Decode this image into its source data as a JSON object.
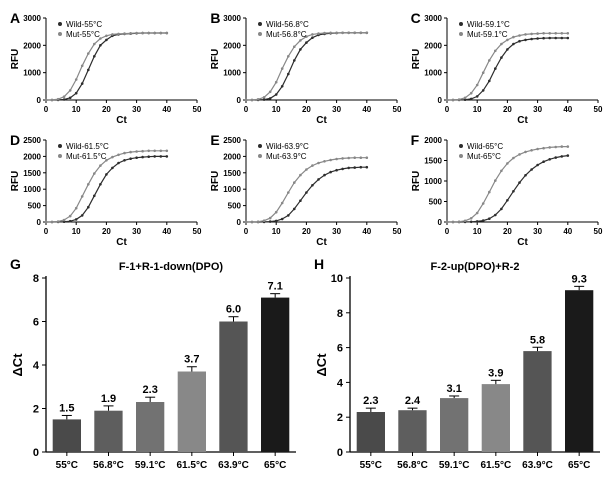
{
  "colors": {
    "wild": "#2d2d2d",
    "mut": "#888888",
    "bg": "#ffffff",
    "axis": "#000000",
    "text": "#000000"
  },
  "fonts": {
    "panel_label_size": 14,
    "panel_label_weight": "bold",
    "axis_label_size": 10,
    "tick_size": 8,
    "legend_size": 8,
    "bar_value_size": 11,
    "bar_title_size": 11
  },
  "pcr_x": {
    "label": "Ct",
    "min": 0,
    "max": 50,
    "ticks": [
      0,
      10,
      20,
      30,
      40,
      50
    ]
  },
  "pcr_y_label": "RFU",
  "pcr_panels": [
    {
      "id": "A",
      "temp": "55°C",
      "ymax": 3000,
      "yticks": [
        0,
        1000,
        2000,
        3000
      ],
      "wild": [
        0,
        0,
        5,
        20,
        80,
        250,
        600,
        1100,
        1600,
        2000,
        2200,
        2350,
        2400,
        2420,
        2430,
        2440,
        2450,
        2450,
        2450,
        2450,
        2450
      ],
      "mut": [
        0,
        5,
        30,
        120,
        350,
        750,
        1250,
        1700,
        2050,
        2250,
        2350,
        2400,
        2420,
        2430,
        2440,
        2450,
        2450,
        2450,
        2450,
        2450,
        2450
      ]
    },
    {
      "id": "B",
      "temp": "56.8°C",
      "ymax": 3000,
      "yticks": [
        0,
        1000,
        2000,
        3000
      ],
      "wild": [
        0,
        0,
        5,
        15,
        60,
        200,
        500,
        950,
        1450,
        1850,
        2100,
        2280,
        2380,
        2420,
        2440,
        2450,
        2460,
        2460,
        2460,
        2460,
        2460
      ],
      "mut": [
        0,
        5,
        25,
        100,
        300,
        650,
        1150,
        1600,
        1950,
        2180,
        2320,
        2400,
        2430,
        2450,
        2460,
        2460,
        2460,
        2460,
        2460,
        2460,
        2460
      ]
    },
    {
      "id": "C",
      "temp": "59.1°C",
      "ymax": 3000,
      "yticks": [
        0,
        1000,
        2000,
        3000
      ],
      "wild": [
        0,
        0,
        3,
        10,
        40,
        130,
        350,
        700,
        1150,
        1550,
        1850,
        2050,
        2150,
        2200,
        2230,
        2250,
        2260,
        2270,
        2270,
        2270,
        2270
      ],
      "mut": [
        0,
        3,
        20,
        80,
        250,
        550,
        1000,
        1450,
        1800,
        2050,
        2200,
        2300,
        2360,
        2400,
        2420,
        2430,
        2440,
        2440,
        2440,
        2440,
        2440
      ]
    },
    {
      "id": "D",
      "temp": "61.5°C",
      "ymax": 2500,
      "yticks": [
        0,
        500,
        1000,
        1500,
        2000,
        2500
      ],
      "wild": [
        0,
        0,
        2,
        8,
        25,
        80,
        200,
        450,
        800,
        1150,
        1450,
        1650,
        1800,
        1880,
        1930,
        1960,
        1980,
        1990,
        2000,
        2000,
        2000
      ],
      "mut": [
        0,
        3,
        15,
        60,
        180,
        420,
        780,
        1150,
        1480,
        1720,
        1880,
        1980,
        2050,
        2100,
        2130,
        2150,
        2160,
        2170,
        2170,
        2170,
        2170
      ]
    },
    {
      "id": "E",
      "temp": "63.9°C",
      "ymax": 2500,
      "yticks": [
        0,
        500,
        1000,
        1500,
        2000,
        2500
      ],
      "wild": [
        0,
        0,
        1,
        4,
        12,
        35,
        90,
        200,
        400,
        650,
        900,
        1120,
        1300,
        1430,
        1520,
        1580,
        1620,
        1650,
        1660,
        1670,
        1670
      ],
      "mut": [
        0,
        2,
        10,
        40,
        120,
        300,
        580,
        900,
        1200,
        1430,
        1600,
        1720,
        1800,
        1850,
        1890,
        1920,
        1940,
        1950,
        1960,
        1960,
        1960
      ]
    },
    {
      "id": "F",
      "temp": "65°C",
      "ymax": 2000,
      "yticks": [
        0,
        500,
        1000,
        1500,
        2000
      ],
      "wild": [
        0,
        0,
        0,
        2,
        6,
        15,
        35,
        80,
        170,
        320,
        530,
        750,
        960,
        1140,
        1280,
        1390,
        1470,
        1530,
        1570,
        1600,
        1620
      ],
      "mut": [
        0,
        2,
        8,
        30,
        90,
        220,
        450,
        730,
        1010,
        1250,
        1430,
        1560,
        1650,
        1710,
        1750,
        1780,
        1800,
        1820,
        1830,
        1840,
        1840
      ]
    }
  ],
  "bar_x": {
    "categories": [
      "55°C",
      "56.8°C",
      "59.1°C",
      "61.5°C",
      "63.9°C",
      "65°C"
    ]
  },
  "bar_y_label": "ΔCt",
  "bar_panels": [
    {
      "id": "G",
      "title": "F-1+R-1-down(DPO)",
      "ymax": 8,
      "yticks": [
        0,
        2,
        4,
        6,
        8
      ],
      "values": [
        1.5,
        1.9,
        2.3,
        3.7,
        6.0,
        7.1
      ],
      "errors": [
        0.18,
        0.22,
        0.22,
        0.22,
        0.22,
        0.18
      ],
      "bar_colors": [
        "#4a4a4a",
        "#5e5e5e",
        "#727272",
        "#888888",
        "#555555",
        "#1a1a1a"
      ]
    },
    {
      "id": "H",
      "title": "F-2-up(DPO)+R-2",
      "ymax": 10,
      "yticks": [
        0,
        2,
        4,
        6,
        8,
        10
      ],
      "values": [
        2.3,
        2.4,
        3.1,
        3.9,
        5.8,
        9.3
      ],
      "errors": [
        0.22,
        0.12,
        0.12,
        0.22,
        0.22,
        0.22
      ],
      "bar_colors": [
        "#4a4a4a",
        "#5e5e5e",
        "#727272",
        "#888888",
        "#555555",
        "#1a1a1a"
      ]
    }
  ]
}
